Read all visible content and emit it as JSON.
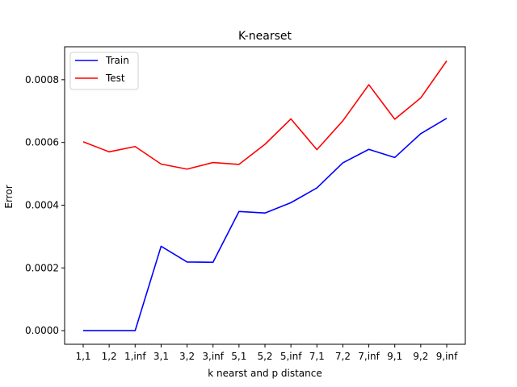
{
  "chart_data": {
    "type": "line",
    "title": "K-nearset",
    "xlabel": "k nearst and p distance",
    "ylabel": "Error",
    "categories": [
      "1,1",
      "1,2",
      "1,inf",
      "3,1",
      "3,2",
      "3,inf",
      "5,1",
      "5,2",
      "5,inf",
      "7,1",
      "7,2",
      "7,inf",
      "9,1",
      "9,2",
      "9,inf"
    ],
    "ylim": [
      -4.34e-05,
      0.000905
    ],
    "yticks": [
      0.0,
      0.0002,
      0.0004,
      0.0006,
      0.0008
    ],
    "ytick_labels": [
      "0.0000",
      "0.0002",
      "0.0004",
      "0.0006",
      "0.0008"
    ],
    "grid": false,
    "legend_position": "top-left",
    "series": [
      {
        "name": "Train",
        "color": "#0000ff",
        "values": [
          0.0,
          0.0,
          0.0,
          0.000269,
          0.000219,
          0.000218,
          0.00038,
          0.000375,
          0.000408,
          0.000455,
          0.000535,
          0.000578,
          0.000552,
          0.000628,
          0.000677
        ]
      },
      {
        "name": "Test",
        "color": "#ff0000",
        "values": [
          0.000602,
          0.00057,
          0.000587,
          0.000531,
          0.000515,
          0.000536,
          0.00053,
          0.000594,
          0.000675,
          0.000577,
          0.000669,
          0.000784,
          0.000674,
          0.000742,
          0.00086
        ]
      }
    ]
  }
}
